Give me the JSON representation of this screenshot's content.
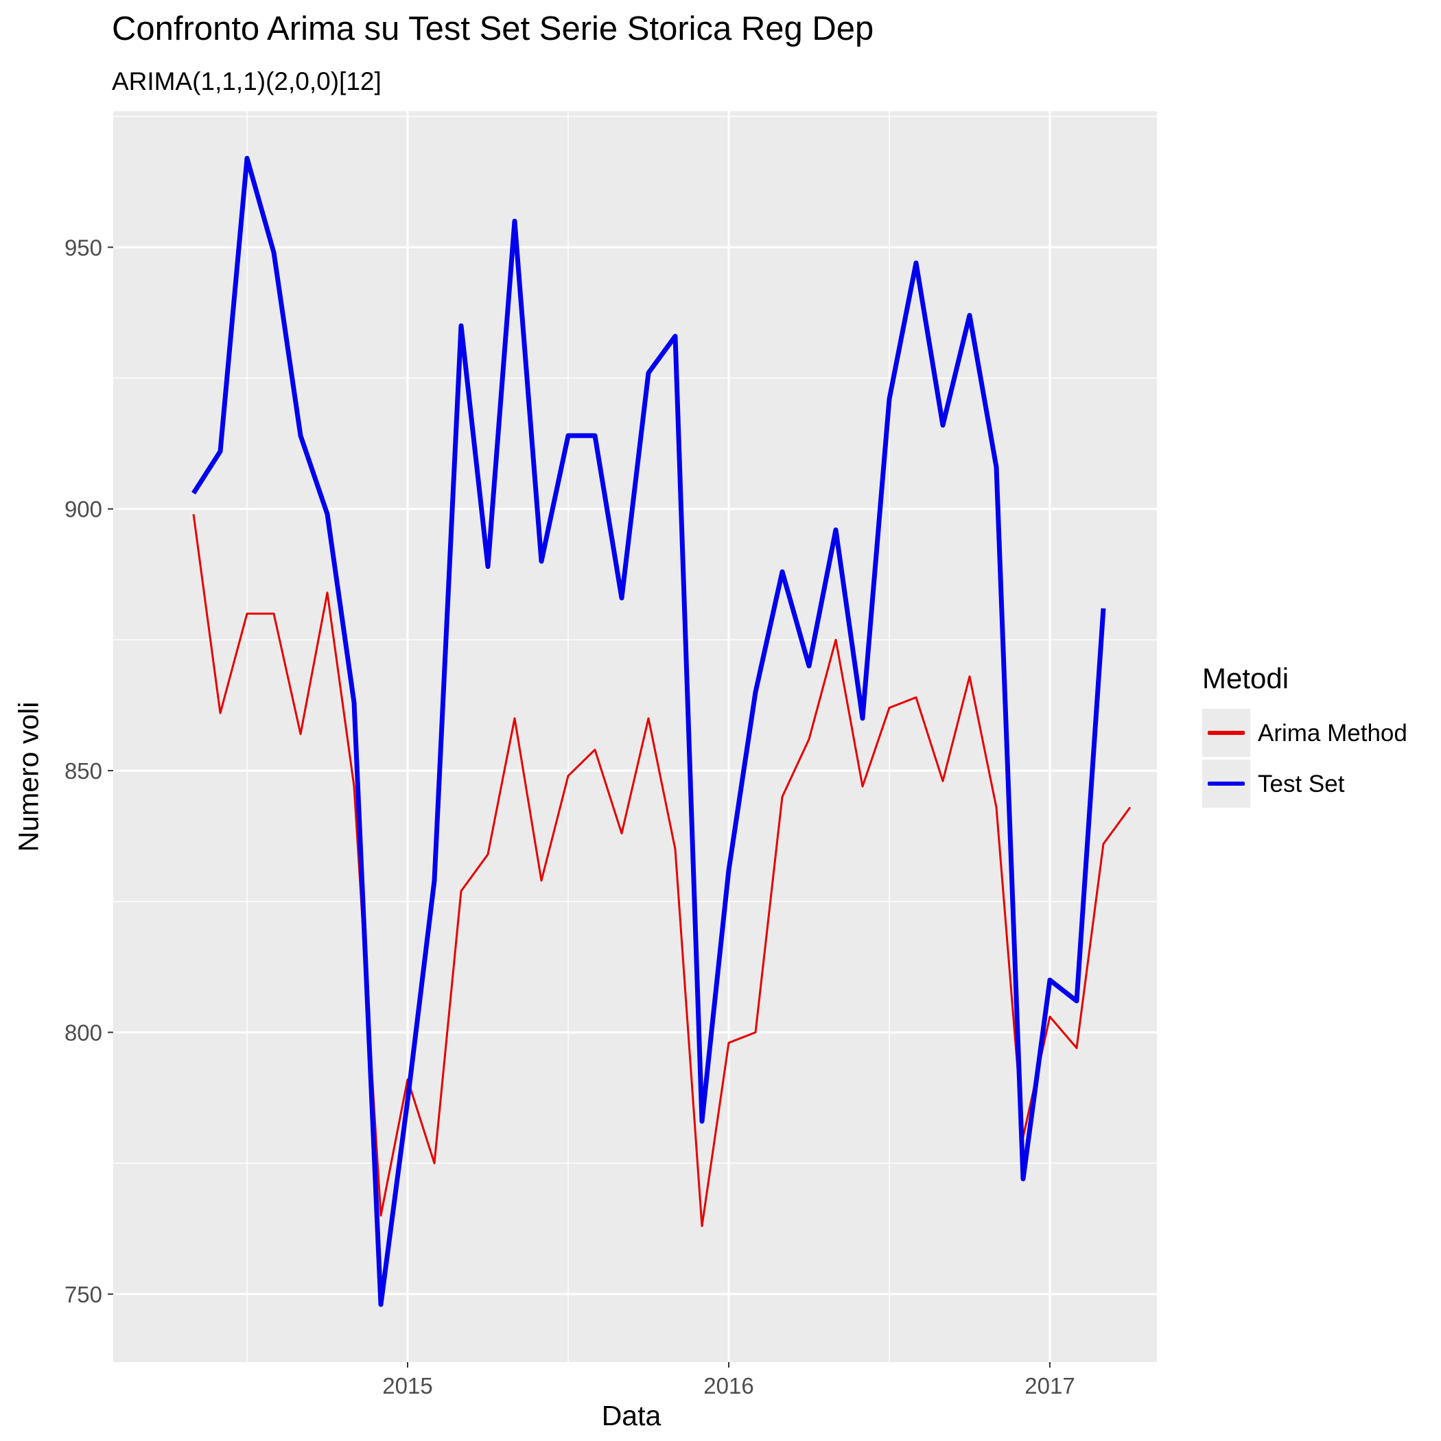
{
  "chart_data": {
    "type": "line",
    "title": "Confronto Arima su Test Set Serie Storica Reg Dep",
    "subtitle": "ARIMA(1,1,1)(2,0,0)[12]",
    "xlabel": "Data",
    "ylabel": "Numero voli",
    "x_ticks": [
      "2015",
      "2016",
      "2017"
    ],
    "y_ticks": [
      750,
      800,
      850,
      900,
      950
    ],
    "xlim": [
      "2014-02",
      "2017-05"
    ],
    "ylim": [
      737,
      976
    ],
    "grid": true,
    "legend_position": "right",
    "legend_title": "Metodi",
    "dates": [
      "2014-05",
      "2014-06",
      "2014-07",
      "2014-08",
      "2014-09",
      "2014-10",
      "2014-11",
      "2014-12",
      "2015-01",
      "2015-02",
      "2015-03",
      "2015-04",
      "2015-05",
      "2015-06",
      "2015-07",
      "2015-08",
      "2015-09",
      "2015-10",
      "2015-11",
      "2015-12",
      "2016-01",
      "2016-02",
      "2016-03",
      "2016-04",
      "2016-05",
      "2016-06",
      "2016-07",
      "2016-08",
      "2016-09",
      "2016-10",
      "2016-11",
      "2016-12",
      "2017-01",
      "2017-02",
      "2017-03",
      "2017-04"
    ],
    "series": [
      {
        "name": "Arima Method",
        "color": "#e60000",
        "values": [
          899,
          861,
          880,
          880,
          857,
          884,
          847,
          765,
          791,
          775,
          827,
          834,
          860,
          829,
          849,
          854,
          838,
          860,
          835,
          763,
          798,
          800,
          845,
          856,
          875,
          847,
          862,
          864,
          848,
          868,
          843,
          780,
          803,
          797,
          836,
          843
        ]
      },
      {
        "name": "Test Set",
        "color": "#0000ee",
        "values": [
          903,
          911,
          967,
          949,
          914,
          899,
          863,
          748,
          787,
          829,
          935,
          889,
          955,
          890,
          914,
          914,
          883,
          926,
          933,
          783,
          831,
          865,
          888,
          870,
          896,
          860,
          921,
          947,
          916,
          937,
          908,
          772,
          810,
          806,
          881,
          null
        ]
      }
    ]
  }
}
